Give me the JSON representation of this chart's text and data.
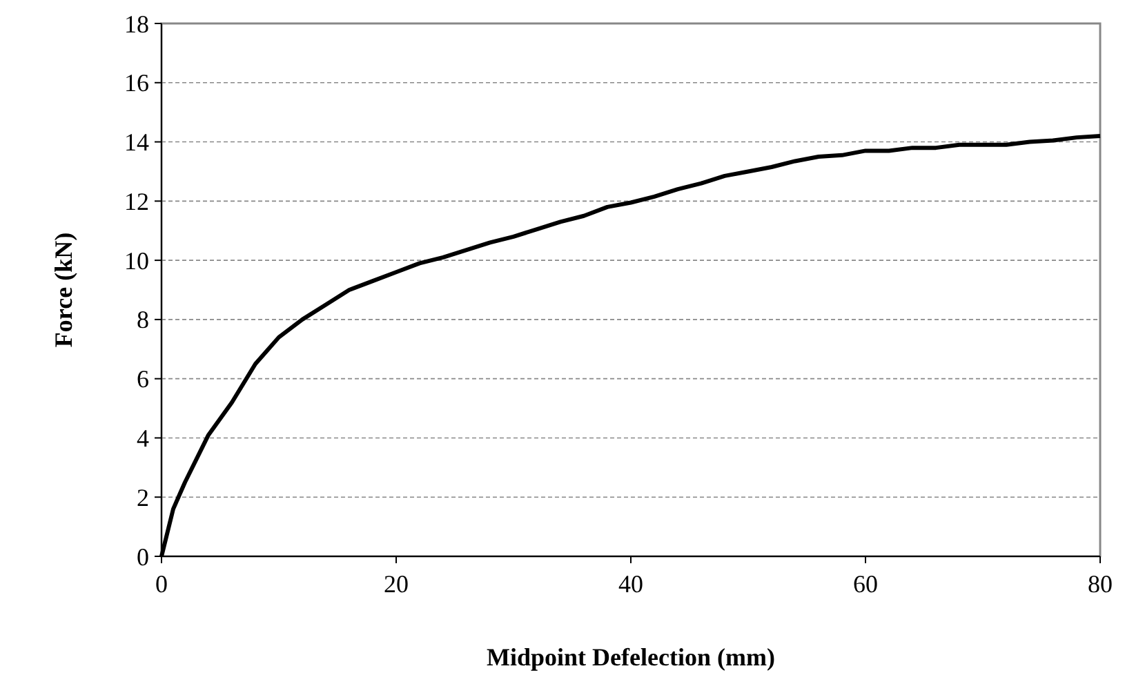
{
  "chart_data": {
    "type": "line",
    "xlabel": "Midpoint Defelection (mm)",
    "ylabel": "Force (kN)",
    "xlim": [
      0,
      80
    ],
    "xticks": [
      0,
      20,
      40,
      60,
      80
    ],
    "ylim": [
      0,
      18
    ],
    "yticks": [
      0,
      2,
      4,
      6,
      8,
      10,
      12,
      14,
      16,
      18
    ],
    "grid": "y",
    "marker": "none",
    "line_style": "solid",
    "series": [
      {
        "color": "#000000",
        "x": [
          0,
          1,
          2,
          4,
          6,
          8,
          10,
          12,
          14,
          16,
          18,
          20,
          22,
          24,
          26,
          28,
          30,
          32,
          34,
          36,
          38,
          40,
          42,
          44,
          46,
          48,
          50,
          52,
          54,
          56,
          58,
          60,
          62,
          64,
          66,
          68,
          70,
          72,
          74,
          76,
          78,
          80
        ],
        "values": [
          0,
          1.6,
          2.5,
          4.1,
          5.2,
          6.5,
          7.4,
          8.0,
          8.5,
          9.0,
          9.3,
          9.6,
          9.9,
          10.1,
          10.35,
          10.6,
          10.8,
          11.05,
          11.3,
          11.5,
          11.8,
          11.95,
          12.15,
          12.4,
          12.6,
          12.85,
          13.0,
          13.15,
          13.35,
          13.5,
          13.55,
          13.7,
          13.7,
          13.8,
          13.8,
          13.9,
          13.9,
          13.9,
          14.0,
          14.05,
          14.15,
          14.2
        ]
      }
    ]
  }
}
